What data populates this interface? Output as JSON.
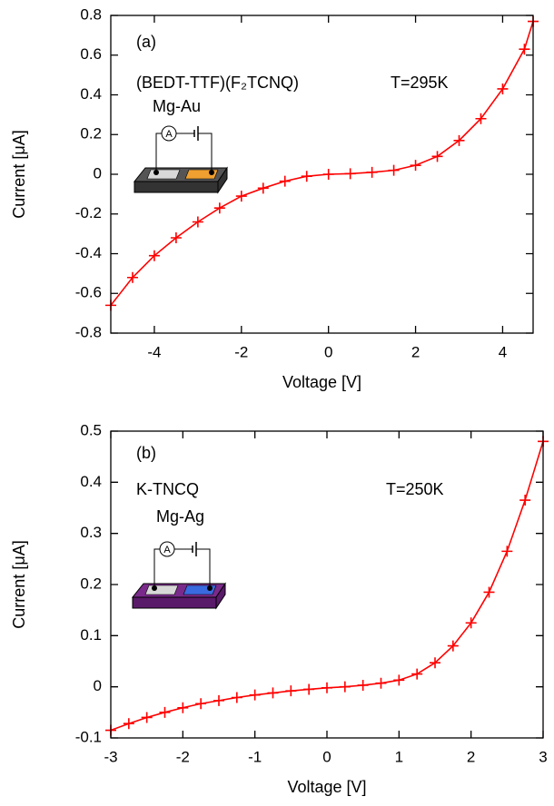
{
  "chart_data": [
    {
      "type": "line",
      "xlabel": "Voltage [V]",
      "ylabel": "Current [μA]",
      "annotations": [
        "(a)",
        "(BEDT-TTF)(F₂TCNQ)",
        "T=295K",
        "Mg-Au",
        "A"
      ],
      "x": [
        -5,
        -4.5,
        -4,
        -3.5,
        -3,
        -2.5,
        -2,
        -1.5,
        -1,
        -0.5,
        0,
        0.5,
        1,
        1.5,
        2,
        2.5,
        3,
        3.5,
        4,
        4.5,
        4.7
      ],
      "values": [
        -0.66,
        -0.52,
        -0.41,
        -0.32,
        -0.24,
        -0.17,
        -0.11,
        -0.07,
        -0.035,
        -0.01,
        0,
        0.003,
        0.01,
        0.02,
        0.045,
        0.09,
        0.17,
        0.28,
        0.43,
        0.63,
        0.77
      ],
      "color": "#ff0000",
      "marker": "+",
      "xlim": [
        -5,
        4.7
      ],
      "ylim": [
        -0.8,
        0.8
      ],
      "xticks": [
        -4,
        -2,
        0,
        2,
        4
      ],
      "yticks": [
        -0.8,
        -0.6,
        -0.4,
        -0.2,
        0,
        0.2,
        0.4,
        0.6,
        0.8
      ]
    },
    {
      "type": "line",
      "xlabel": "Voltage [V]",
      "ylabel": "Current [μA]",
      "annotations": [
        "(b)",
        "K-TNCQ",
        "T=250K",
        "Mg-Ag",
        "A"
      ],
      "x": [
        -3,
        -2.75,
        -2.5,
        -2.25,
        -2,
        -1.75,
        -1.5,
        -1.25,
        -1,
        -0.75,
        -0.5,
        -0.25,
        0,
        0.25,
        0.5,
        0.75,
        1,
        1.25,
        1.5,
        1.75,
        2,
        2.25,
        2.5,
        2.75,
        3
      ],
      "values": [
        -0.085,
        -0.072,
        -0.06,
        -0.05,
        -0.041,
        -0.033,
        -0.027,
        -0.021,
        -0.016,
        -0.012,
        -0.008,
        -0.005,
        -0.002,
        0,
        0.003,
        0.007,
        0.013,
        0.025,
        0.047,
        0.08,
        0.125,
        0.185,
        0.265,
        0.365,
        0.48
      ],
      "color": "#ff0000",
      "marker": "+",
      "xlim": [
        -3,
        3
      ],
      "ylim": [
        -0.1,
        0.5
      ],
      "xticks": [
        -3,
        -2,
        -1,
        0,
        1,
        2,
        3
      ],
      "yticks": [
        -0.1,
        0,
        0.1,
        0.2,
        0.3,
        0.4,
        0.5
      ]
    }
  ]
}
